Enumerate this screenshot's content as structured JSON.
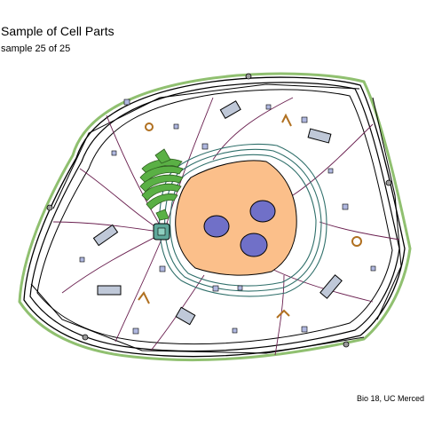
{
  "header": {
    "title": "Sample of Cell Parts",
    "subtitle": "sample 25 of 25"
  },
  "footer": {
    "caption": "Bio 18, UC Merced"
  },
  "colors": {
    "membrane": "#000000",
    "membrane_inner": "#90c070",
    "nucleus": "#fbbf8a",
    "nucleolus": "#7070c8",
    "golgi": "#5ab045",
    "centrosome": "#5fa89a",
    "er": "#2f6f6a",
    "mitochondria_fill": "#bfc8d8",
    "lysosome": "#a0a8d0",
    "vesicle": "#b0b8e0",
    "filament": "#6a1f4f",
    "peroxisome": "#b07020"
  }
}
